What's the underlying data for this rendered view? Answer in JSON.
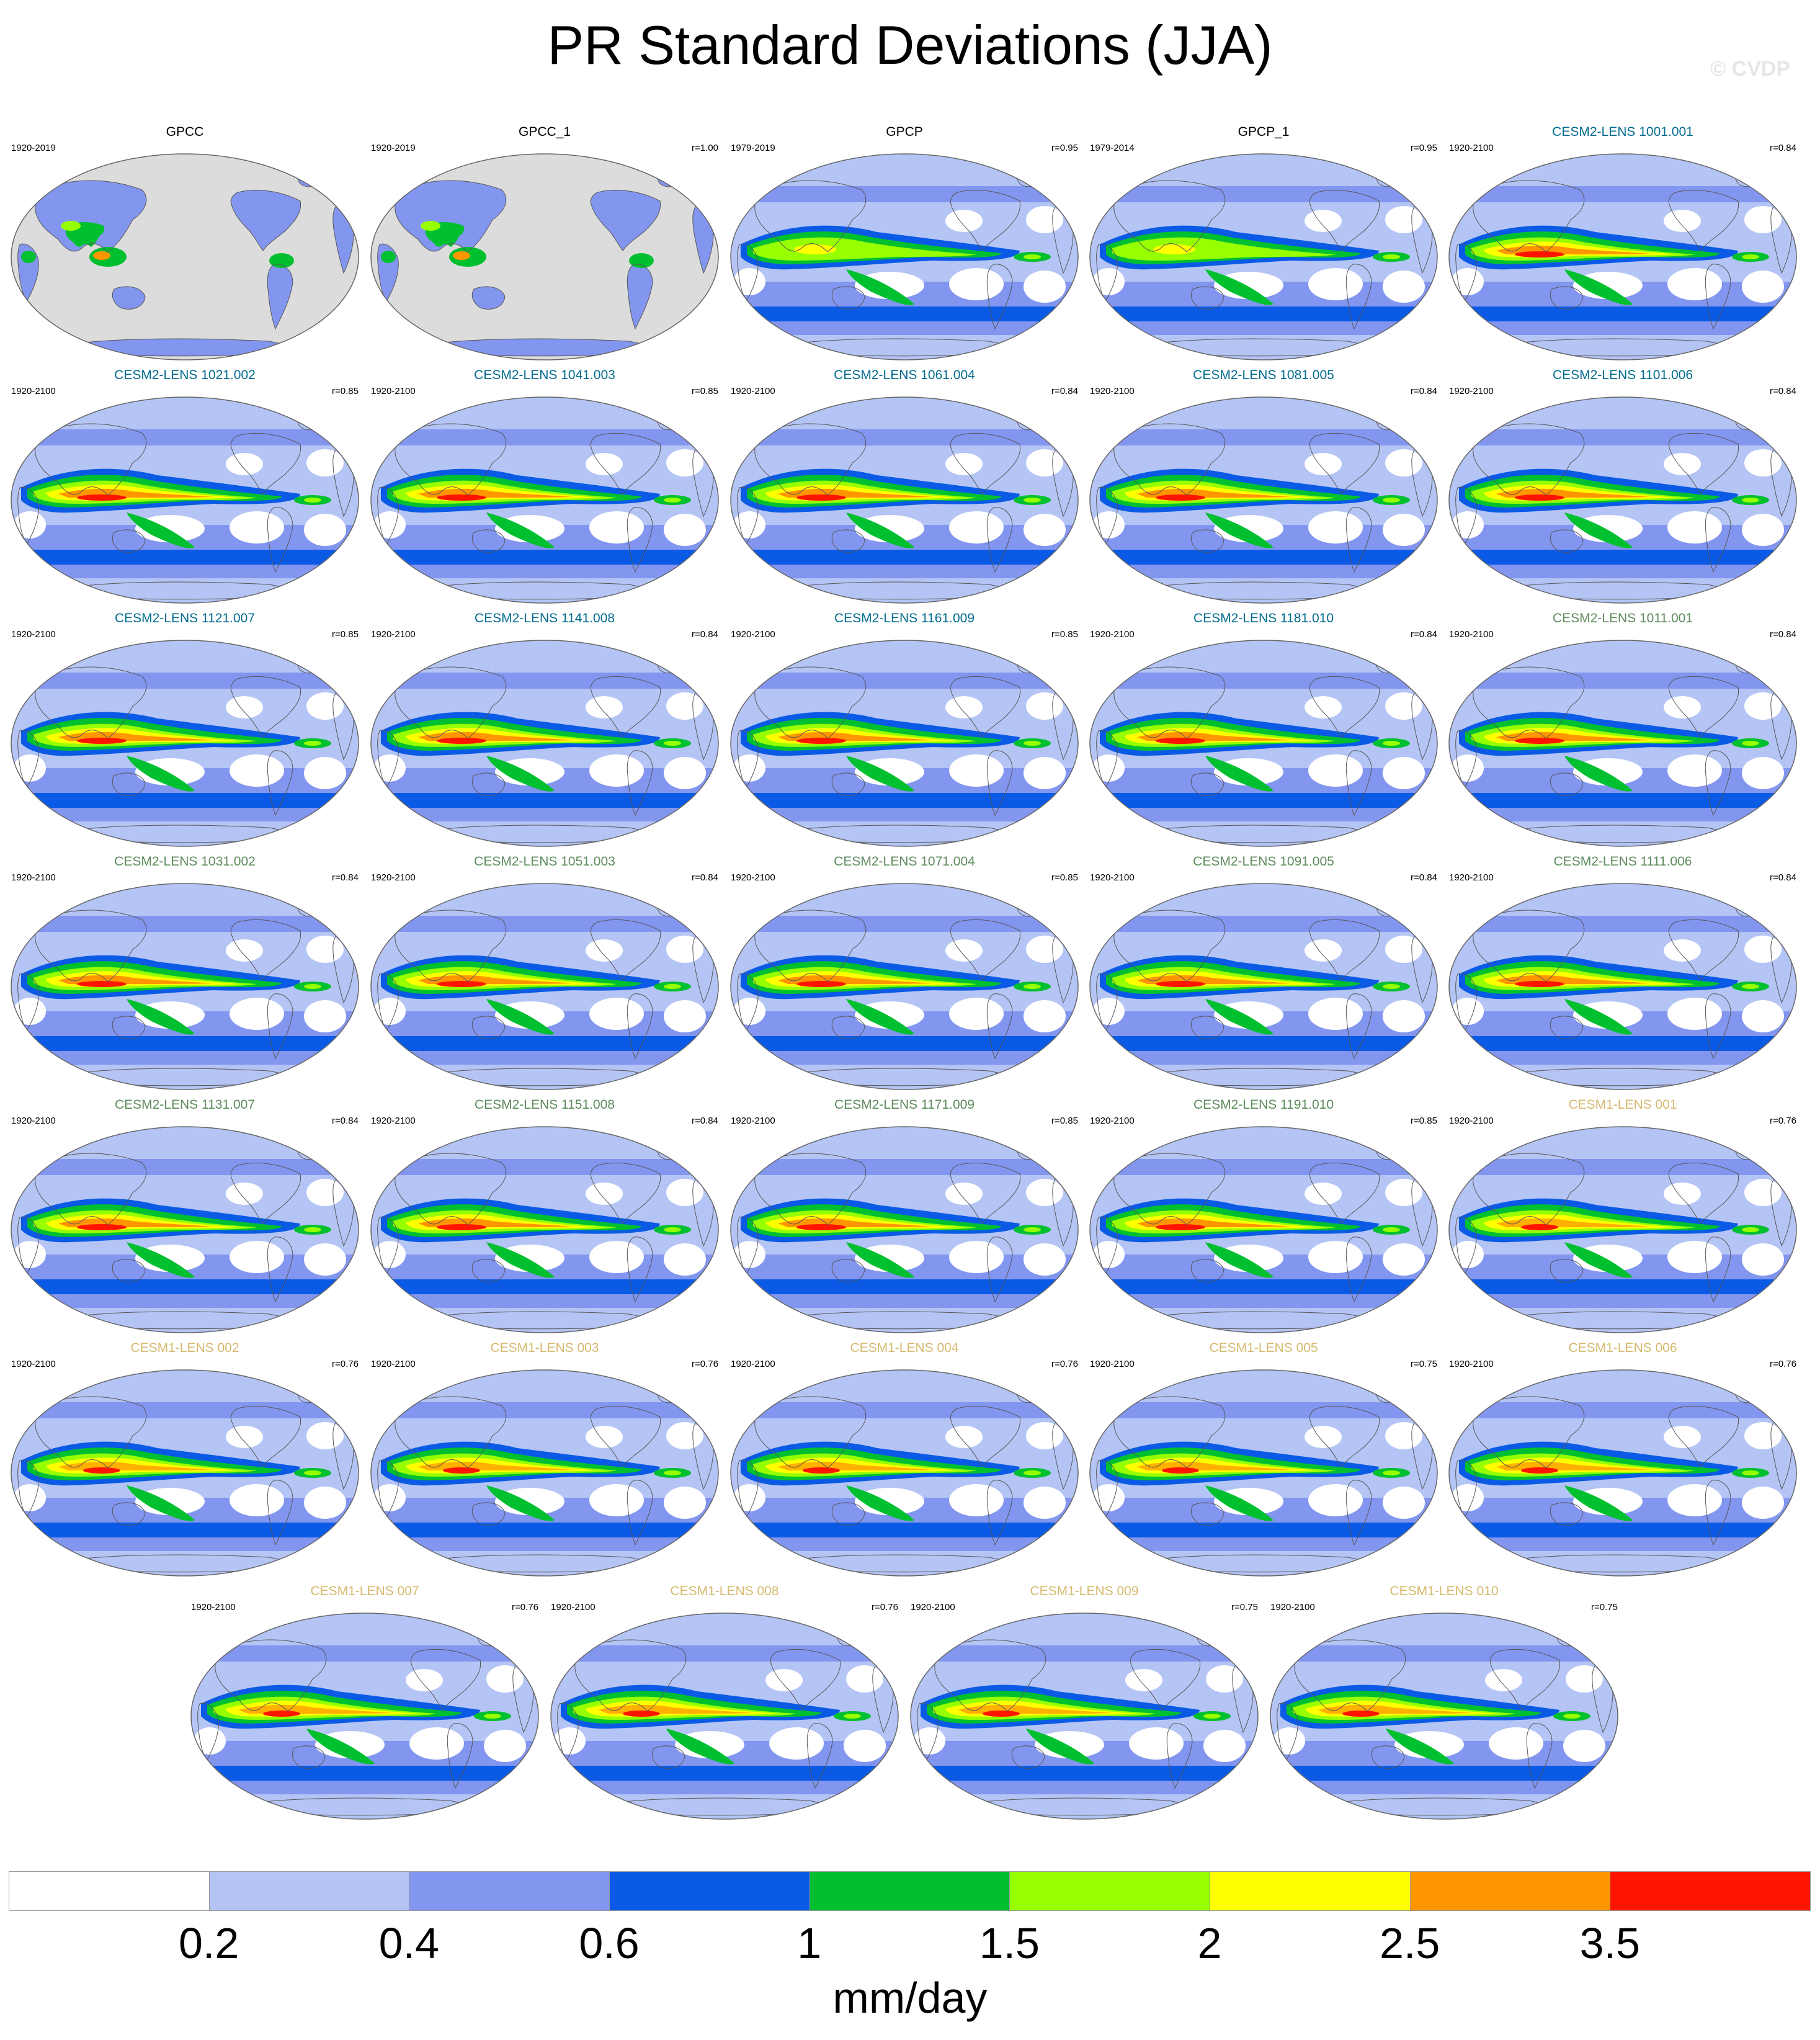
{
  "title": "PR Standard Deviations (JJA)",
  "watermark": "© CVDP",
  "units": "mm/day",
  "colorbar": {
    "colors": [
      "#ffffff",
      "#b4c4f5",
      "#8296f0",
      "#0a5ae6",
      "#00c030",
      "#96ff00",
      "#ffff00",
      "#ff9600",
      "#ff1400"
    ],
    "labels": [
      "0.2",
      "0.4",
      "0.6",
      "1",
      "1.5",
      "2",
      "2.5",
      "3.5"
    ]
  },
  "panels": [
    {
      "title": "GPCC",
      "years": "1920-2019",
      "r": "",
      "color": "#000000",
      "kind": "obs_land"
    },
    {
      "title": "GPCC_1",
      "years": "1920-2019",
      "r": "r=1.00",
      "color": "#000000",
      "kind": "obs_land"
    },
    {
      "title": "GPCP",
      "years": "1979-2019",
      "r": "r=0.95",
      "color": "#000000",
      "kind": "obs"
    },
    {
      "title": "GPCP_1",
      "years": "1979-2014",
      "r": "r=0.95",
      "color": "#000000",
      "kind": "obs"
    },
    {
      "title": "CESM2-LENS 1001.001",
      "years": "1920-2100",
      "r": "r=0.84",
      "color": "#006b8f",
      "kind": "cesm2"
    },
    {
      "title": "CESM2-LENS 1021.002",
      "years": "1920-2100",
      "r": "r=0.85",
      "color": "#006b8f",
      "kind": "cesm2"
    },
    {
      "title": "CESM2-LENS 1041.003",
      "years": "1920-2100",
      "r": "r=0.85",
      "color": "#006b8f",
      "kind": "cesm2"
    },
    {
      "title": "CESM2-LENS 1061.004",
      "years": "1920-2100",
      "r": "r=0.84",
      "color": "#006b8f",
      "kind": "cesm2"
    },
    {
      "title": "CESM2-LENS 1081.005",
      "years": "1920-2100",
      "r": "r=0.84",
      "color": "#006b8f",
      "kind": "cesm2"
    },
    {
      "title": "CESM2-LENS 1101.006",
      "years": "1920-2100",
      "r": "r=0.84",
      "color": "#006b8f",
      "kind": "cesm2"
    },
    {
      "title": "CESM2-LENS 1121.007",
      "years": "1920-2100",
      "r": "r=0.85",
      "color": "#006b8f",
      "kind": "cesm2"
    },
    {
      "title": "CESM2-LENS 1141.008",
      "years": "1920-2100",
      "r": "r=0.84",
      "color": "#006b8f",
      "kind": "cesm2"
    },
    {
      "title": "CESM2-LENS 1161.009",
      "years": "1920-2100",
      "r": "r=0.85",
      "color": "#006b8f",
      "kind": "cesm2"
    },
    {
      "title": "CESM2-LENS 1181.010",
      "years": "1920-2100",
      "r": "r=0.84",
      "color": "#006b8f",
      "kind": "cesm2"
    },
    {
      "title": "CESM2-LENS 1011.001",
      "years": "1920-2100",
      "r": "r=0.84",
      "color": "#5d8a5b",
      "kind": "cesm2"
    },
    {
      "title": "CESM2-LENS 1031.002",
      "years": "1920-2100",
      "r": "r=0.84",
      "color": "#5d8a5b",
      "kind": "cesm2"
    },
    {
      "title": "CESM2-LENS 1051.003",
      "years": "1920-2100",
      "r": "r=0.84",
      "color": "#5d8a5b",
      "kind": "cesm2"
    },
    {
      "title": "CESM2-LENS 1071.004",
      "years": "1920-2100",
      "r": "r=0.85",
      "color": "#5d8a5b",
      "kind": "cesm2"
    },
    {
      "title": "CESM2-LENS 1091.005",
      "years": "1920-2100",
      "r": "r=0.84",
      "color": "#5d8a5b",
      "kind": "cesm2"
    },
    {
      "title": "CESM2-LENS 1111.006",
      "years": "1920-2100",
      "r": "r=0.84",
      "color": "#5d8a5b",
      "kind": "cesm2"
    },
    {
      "title": "CESM2-LENS 1131.007",
      "years": "1920-2100",
      "r": "r=0.84",
      "color": "#5d8a5b",
      "kind": "cesm2"
    },
    {
      "title": "CESM2-LENS 1151.008",
      "years": "1920-2100",
      "r": "r=0.84",
      "color": "#5d8a5b",
      "kind": "cesm2"
    },
    {
      "title": "CESM2-LENS 1171.009",
      "years": "1920-2100",
      "r": "r=0.85",
      "color": "#5d8a5b",
      "kind": "cesm2"
    },
    {
      "title": "CESM2-LENS 1191.010",
      "years": "1920-2100",
      "r": "r=0.85",
      "color": "#5d8a5b",
      "kind": "cesm2"
    },
    {
      "title": "CESM1-LENS 001",
      "years": "1920-2100",
      "r": "r=0.76",
      "color": "#d6b96e",
      "kind": "cesm1"
    },
    {
      "title": "CESM1-LENS 002",
      "years": "1920-2100",
      "r": "r=0.76",
      "color": "#d6b96e",
      "kind": "cesm1"
    },
    {
      "title": "CESM1-LENS 003",
      "years": "1920-2100",
      "r": "r=0.76",
      "color": "#d6b96e",
      "kind": "cesm1"
    },
    {
      "title": "CESM1-LENS 004",
      "years": "1920-2100",
      "r": "r=0.76",
      "color": "#d6b96e",
      "kind": "cesm1"
    },
    {
      "title": "CESM1-LENS 005",
      "years": "1920-2100",
      "r": "r=0.75",
      "color": "#d6b96e",
      "kind": "cesm1"
    },
    {
      "title": "CESM1-LENS 006",
      "years": "1920-2100",
      "r": "r=0.76",
      "color": "#d6b96e",
      "kind": "cesm1"
    },
    {
      "title": "CESM1-LENS 007",
      "years": "1920-2100",
      "r": "r=0.76",
      "color": "#d6b96e",
      "kind": "cesm1"
    },
    {
      "title": "CESM1-LENS 008",
      "years": "1920-2100",
      "r": "r=0.76",
      "color": "#d6b96e",
      "kind": "cesm1"
    },
    {
      "title": "CESM1-LENS 009",
      "years": "1920-2100",
      "r": "r=0.75",
      "color": "#d6b96e",
      "kind": "cesm1"
    },
    {
      "title": "CESM1-LENS 010",
      "years": "1920-2100",
      "r": "r=0.75",
      "color": "#d6b96e",
      "kind": "cesm1"
    }
  ]
}
